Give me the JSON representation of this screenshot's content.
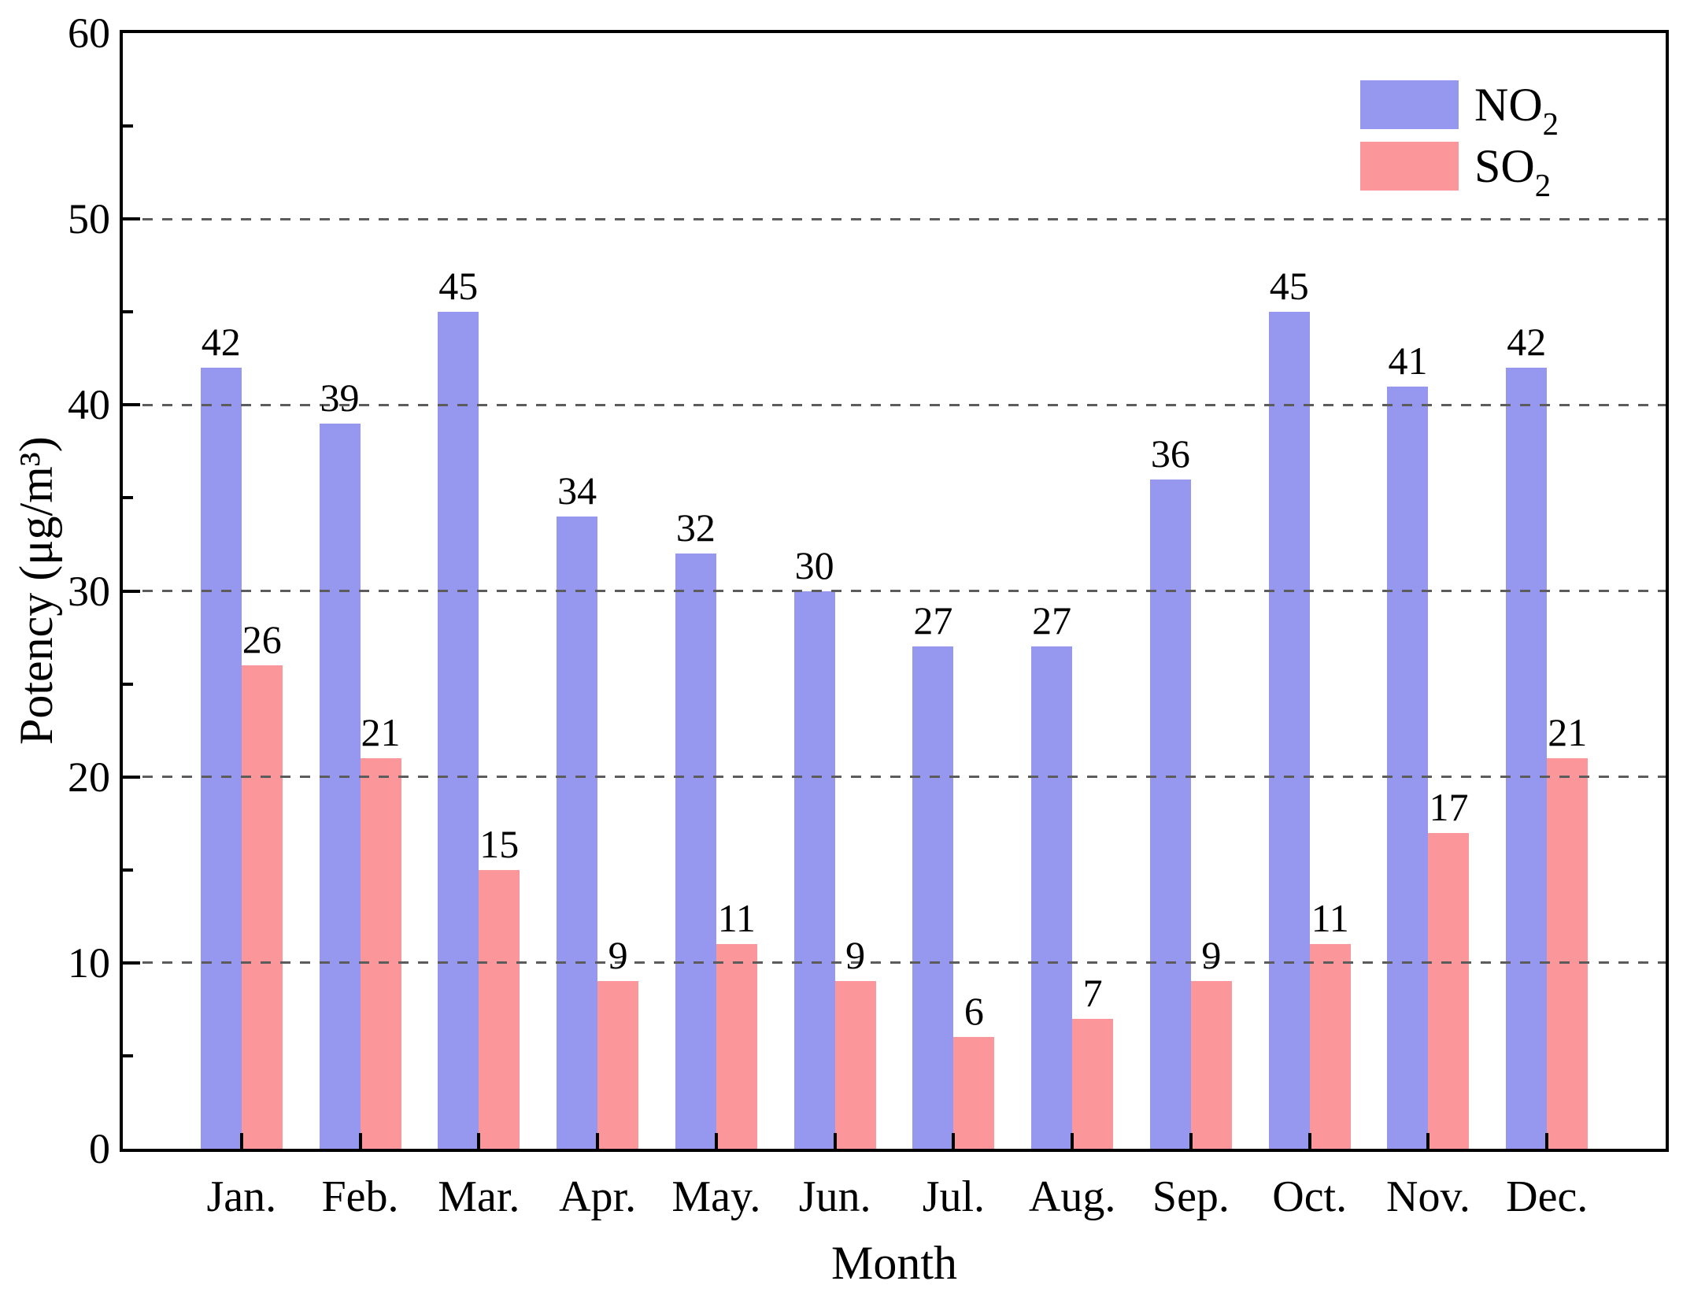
{
  "figure": {
    "background": "#ffffff",
    "axis_color": "#000000",
    "text_color": "#000000",
    "gridline_color": "#5c5c5c"
  },
  "chart_data": {
    "type": "bar",
    "title": "",
    "xlabel": "Month",
    "ylabel": "Potency (μg/m³)",
    "categories": [
      "Jan.",
      "Feb.",
      "Mar.",
      "Apr.",
      "May.",
      "Jun.",
      "Jul.",
      "Aug.",
      "Sep.",
      "Oct.",
      "Nov.",
      "Dec."
    ],
    "series": [
      {
        "name": "NO2",
        "label_base": "NO",
        "label_sub": "2",
        "color": "#9697ee",
        "values": [
          42,
          39,
          45,
          34,
          32,
          30,
          27,
          27,
          36,
          45,
          41,
          42
        ]
      },
      {
        "name": "SO2",
        "label_base": "SO",
        "label_sub": "2",
        "color": "#fb969b",
        "values": [
          26,
          21,
          15,
          9,
          11,
          9,
          6,
          7,
          9,
          11,
          17,
          21
        ]
      }
    ],
    "ylim": [
      0,
      60
    ],
    "yticks_major": [
      0,
      10,
      20,
      30,
      40,
      50,
      60
    ],
    "yticks_minor": [
      5,
      15,
      25,
      35,
      45,
      55
    ],
    "grid_horizontal_dashed_at": [
      10,
      20,
      30,
      40,
      50
    ],
    "legend_position": "top-right-inside",
    "bar_value_labels": true,
    "tick_direction": "in"
  }
}
